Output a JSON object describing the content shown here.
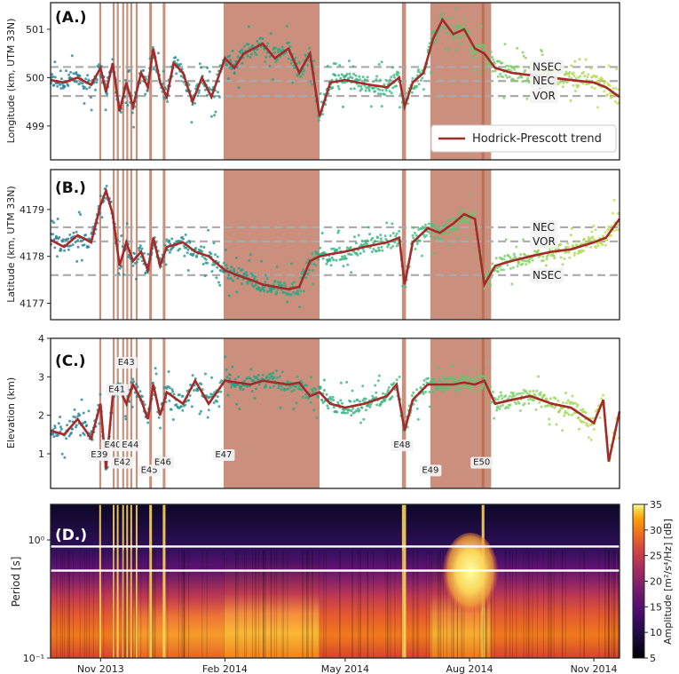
{
  "colors": {
    "trend": "#a52a2a",
    "shade": "#b5654b",
    "ref_line": "#aaaaaa",
    "frame": "#222222",
    "white_line": "#ffffff"
  },
  "time_axis": {
    "range": [
      "2013-09-25",
      "2014-11-20"
    ],
    "ticks": [
      {
        "date": "2013-11-01",
        "label": "Nov 2013"
      },
      {
        "date": "2014-02-01",
        "label": "Feb 2014"
      },
      {
        "date": "2014-05-01",
        "label": "May 2014"
      },
      {
        "date": "2014-08-01",
        "label": "Aug 2014"
      },
      {
        "date": "2014-11-01",
        "label": "Nov 2014"
      }
    ]
  },
  "eruptive_shading": [
    {
      "start": "2013-10-31",
      "end": "2013-11-01"
    },
    {
      "start": "2013-11-10",
      "end": "2013-11-11"
    },
    {
      "start": "2013-11-13",
      "end": "2013-11-14"
    },
    {
      "start": "2013-11-17",
      "end": "2013-11-18"
    },
    {
      "start": "2013-11-20",
      "end": "2013-11-21"
    },
    {
      "start": "2013-11-23",
      "end": "2013-11-24"
    },
    {
      "start": "2013-11-27",
      "end": "2013-11-28"
    },
    {
      "start": "2013-12-07",
      "end": "2013-12-09"
    },
    {
      "start": "2013-12-17",
      "end": "2013-12-19"
    },
    {
      "start": "2014-01-31",
      "end": "2014-04-12"
    },
    {
      "start": "2014-06-12",
      "end": "2014-06-15"
    },
    {
      "start": "2014-07-03",
      "end": "2014-08-17"
    },
    {
      "start": "2014-08-10",
      "end": "2014-08-12"
    }
  ],
  "chart_data": [
    {
      "type": "scatter",
      "panel": "(A.)",
      "ylabel": "Longitude (km, UTM 33N)",
      "ylim": [
        498.3,
        501.55
      ],
      "yticks": [
        499,
        500,
        501
      ],
      "reference_lines": [
        {
          "name": "NSEC",
          "value": 500.22
        },
        {
          "name": "NEC",
          "value": 499.93
        },
        {
          "name": "VOR",
          "value": 499.62
        }
      ],
      "legend": {
        "label": "Hodrick-Prescott trend",
        "position": "lower right"
      },
      "trend": {
        "dates": [
          "2013-09-25",
          "2013-10-05",
          "2013-10-15",
          "2013-10-25",
          "2013-11-01",
          "2013-11-05",
          "2013-11-10",
          "2013-11-15",
          "2013-11-20",
          "2013-11-25",
          "2013-12-01",
          "2013-12-06",
          "2013-12-10",
          "2013-12-15",
          "2013-12-20",
          "2013-12-25",
          "2014-01-01",
          "2014-01-08",
          "2014-01-15",
          "2014-01-22",
          "2014-02-01",
          "2014-02-08",
          "2014-02-15",
          "2014-02-22",
          "2014-03-01",
          "2014-03-10",
          "2014-03-20",
          "2014-03-28",
          "2014-04-05",
          "2014-04-12",
          "2014-04-20",
          "2014-05-01",
          "2014-05-10",
          "2014-05-20",
          "2014-06-01",
          "2014-06-10",
          "2014-06-14",
          "2014-06-20",
          "2014-06-28",
          "2014-07-05",
          "2014-07-12",
          "2014-07-20",
          "2014-07-28",
          "2014-08-05",
          "2014-08-12",
          "2014-08-20",
          "2014-09-01",
          "2014-09-15",
          "2014-10-01",
          "2014-10-15",
          "2014-11-01",
          "2014-11-10",
          "2014-11-20"
        ],
        "values": [
          499.95,
          499.9,
          500.0,
          499.85,
          500.2,
          499.7,
          500.3,
          499.3,
          499.9,
          499.4,
          500.1,
          499.8,
          500.6,
          499.9,
          499.6,
          500.3,
          500.1,
          499.5,
          500.0,
          499.6,
          500.4,
          500.2,
          500.5,
          500.6,
          500.7,
          500.4,
          500.6,
          500.1,
          500.5,
          499.2,
          499.9,
          499.95,
          499.9,
          499.85,
          499.8,
          500.0,
          499.4,
          499.9,
          500.1,
          500.8,
          501.2,
          500.9,
          501.0,
          500.6,
          500.5,
          500.2,
          500.1,
          500.05,
          500.0,
          499.95,
          499.9,
          499.8,
          499.6
        ]
      }
    },
    {
      "type": "scatter",
      "panel": "(B.)",
      "ylabel": "Latitude (km, UTM 33N)",
      "ylim": [
        4176.65,
        4179.85
      ],
      "yticks": [
        4177,
        4178,
        4179
      ],
      "reference_lines": [
        {
          "name": "NEC",
          "value": 4178.62
        },
        {
          "name": "VOR",
          "value": 4178.32
        },
        {
          "name": "NSEC",
          "value": 4177.6
        }
      ],
      "trend": {
        "dates": [
          "2013-09-25",
          "2013-10-05",
          "2013-10-15",
          "2013-10-25",
          "2013-11-01",
          "2013-11-05",
          "2013-11-10",
          "2013-11-15",
          "2013-11-20",
          "2013-11-25",
          "2013-12-01",
          "2013-12-06",
          "2013-12-10",
          "2013-12-15",
          "2013-12-20",
          "2014-01-01",
          "2014-01-10",
          "2014-01-20",
          "2014-02-01",
          "2014-02-10",
          "2014-02-20",
          "2014-03-01",
          "2014-03-10",
          "2014-03-20",
          "2014-03-28",
          "2014-04-05",
          "2014-04-12",
          "2014-04-20",
          "2014-05-01",
          "2014-05-15",
          "2014-06-01",
          "2014-06-10",
          "2014-06-14",
          "2014-06-20",
          "2014-07-01",
          "2014-07-10",
          "2014-07-20",
          "2014-07-28",
          "2014-08-05",
          "2014-08-12",
          "2014-08-20",
          "2014-09-01",
          "2014-09-15",
          "2014-10-01",
          "2014-10-15",
          "2014-11-01",
          "2014-11-10",
          "2014-11-20"
        ],
        "values": [
          4178.35,
          4178.2,
          4178.45,
          4178.3,
          4179.1,
          4179.4,
          4178.9,
          4177.8,
          4178.3,
          4177.9,
          4178.1,
          4177.7,
          4178.4,
          4177.8,
          4178.2,
          4178.3,
          4178.1,
          4178.0,
          4177.7,
          4177.6,
          4177.5,
          4177.4,
          4177.35,
          4177.3,
          4177.35,
          4177.9,
          4178.0,
          4178.05,
          4178.1,
          4178.2,
          4178.3,
          4178.4,
          4177.4,
          4178.3,
          4178.6,
          4178.5,
          4178.7,
          4178.9,
          4178.8,
          4177.4,
          4177.8,
          4177.9,
          4178.0,
          4178.1,
          4178.15,
          4178.3,
          4178.4,
          4178.8
        ]
      }
    },
    {
      "type": "scatter",
      "panel": "(C.)",
      "ylabel": "Elevation (km)",
      "ylim": [
        0.1,
        4.0
      ],
      "yticks": [
        1,
        2,
        3,
        4
      ],
      "events": [
        {
          "label": "E39",
          "date": "2013-10-31",
          "level": 1.0
        },
        {
          "label": "E40",
          "date": "2013-11-10",
          "level": 1.25
        },
        {
          "label": "E41",
          "date": "2013-11-13",
          "level": 2.7
        },
        {
          "label": "E42",
          "date": "2013-11-17",
          "level": 0.8
        },
        {
          "label": "E43",
          "date": "2013-11-20",
          "level": 3.4
        },
        {
          "label": "E44",
          "date": "2013-11-23",
          "level": 1.25
        },
        {
          "label": "E45",
          "date": "2013-12-07",
          "level": 0.6
        },
        {
          "label": "E46",
          "date": "2013-12-17",
          "level": 0.8
        },
        {
          "label": "E47",
          "date": "2014-01-31",
          "level": 1.0
        },
        {
          "label": "E48",
          "date": "2014-06-12",
          "level": 1.25
        },
        {
          "label": "E49",
          "date": "2014-07-03",
          "level": 0.6
        },
        {
          "label": "E50",
          "date": "2014-08-10",
          "level": 0.8
        }
      ],
      "trend": {
        "dates": [
          "2013-09-25",
          "2013-10-05",
          "2013-10-15",
          "2013-10-25",
          "2013-11-01",
          "2013-11-05",
          "2013-11-10",
          "2013-11-15",
          "2013-11-20",
          "2013-11-25",
          "2013-12-01",
          "2013-12-06",
          "2013-12-10",
          "2013-12-15",
          "2013-12-20",
          "2014-01-01",
          "2014-01-10",
          "2014-01-20",
          "2014-02-01",
          "2014-02-10",
          "2014-02-20",
          "2014-03-01",
          "2014-03-10",
          "2014-03-20",
          "2014-03-28",
          "2014-04-05",
          "2014-04-12",
          "2014-04-20",
          "2014-05-01",
          "2014-05-15",
          "2014-06-01",
          "2014-06-08",
          "2014-06-14",
          "2014-06-20",
          "2014-07-01",
          "2014-07-10",
          "2014-07-20",
          "2014-07-28",
          "2014-08-05",
          "2014-08-12",
          "2014-08-20",
          "2014-09-01",
          "2014-09-15",
          "2014-10-01",
          "2014-10-15",
          "2014-11-01",
          "2014-11-08",
          "2014-11-12",
          "2014-11-20"
        ],
        "values": [
          1.6,
          1.5,
          1.9,
          1.4,
          2.3,
          0.6,
          2.5,
          2.7,
          2.3,
          2.8,
          2.4,
          1.9,
          2.8,
          2.0,
          2.6,
          2.3,
          2.9,
          2.3,
          2.9,
          2.85,
          2.8,
          2.9,
          2.85,
          2.8,
          2.85,
          2.5,
          2.6,
          2.3,
          2.2,
          2.3,
          2.5,
          2.8,
          1.6,
          2.4,
          2.8,
          2.8,
          2.8,
          2.85,
          2.8,
          2.9,
          2.3,
          2.4,
          2.5,
          2.3,
          2.2,
          1.8,
          2.4,
          0.8,
          2.1
        ]
      }
    },
    {
      "type": "heatmap",
      "panel": "(D.)",
      "ylabel": "Period [s]",
      "yscale": "log",
      "ylim": [
        0.1,
        2.0
      ],
      "yticks": [
        0.1,
        1.0
      ],
      "ytick_labels": [
        "10⁻¹",
        "10⁰"
      ],
      "colorbar": {
        "label": "Amplitude [m²/s⁴/Hz] [dB]",
        "range": [
          5,
          35
        ],
        "ticks": [
          5,
          10,
          15,
          20,
          25,
          30,
          35
        ],
        "colormap": "inferno"
      },
      "horizontal_lines_period": [
        0.88,
        0.55
      ]
    }
  ]
}
